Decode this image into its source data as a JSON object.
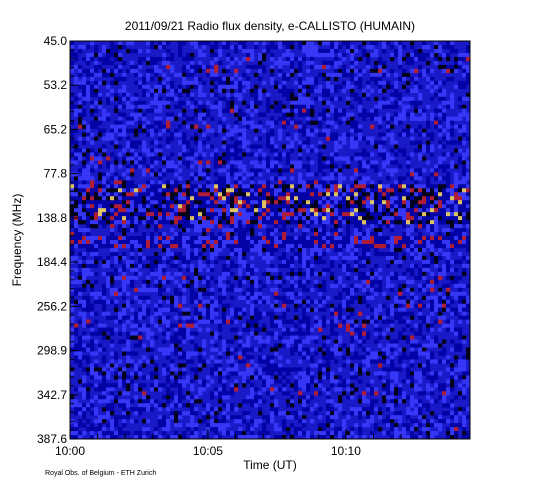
{
  "chart_data": {
    "type": "heatmap",
    "title": "2011/09/21  Radio flux density, e-CALLISTO (HUMAIN)",
    "xlabel": "Time (UT)",
    "ylabel": "Frequency (MHz)",
    "x_ticks": [
      "10:00",
      "10:05",
      "10:10"
    ],
    "y_ticks": [
      "45.0",
      "53.2",
      "65.2",
      "77.8",
      "138.8",
      "184.4",
      "256.2",
      "298.9",
      "342.7",
      "387.6"
    ],
    "time_range": [
      "10:00",
      "10:14:30"
    ],
    "frequency_range_mhz": [
      45.0,
      387.6
    ],
    "colors": {
      "background": "#1919c8",
      "low": "#0000a0",
      "mid": "#3c3cff",
      "high": "#c81e1e",
      "peak": "#ffe050",
      "dark": "#000000"
    },
    "features": [
      {
        "label": "strong emission band",
        "row_frac": [
          0.36,
          0.45
        ]
      },
      {
        "label": "emission band",
        "row_frac": [
          0.49,
          0.51
        ]
      }
    ]
  },
  "footer": {
    "credit": "Royal Obs. of Belgium - ETH Zurich"
  }
}
